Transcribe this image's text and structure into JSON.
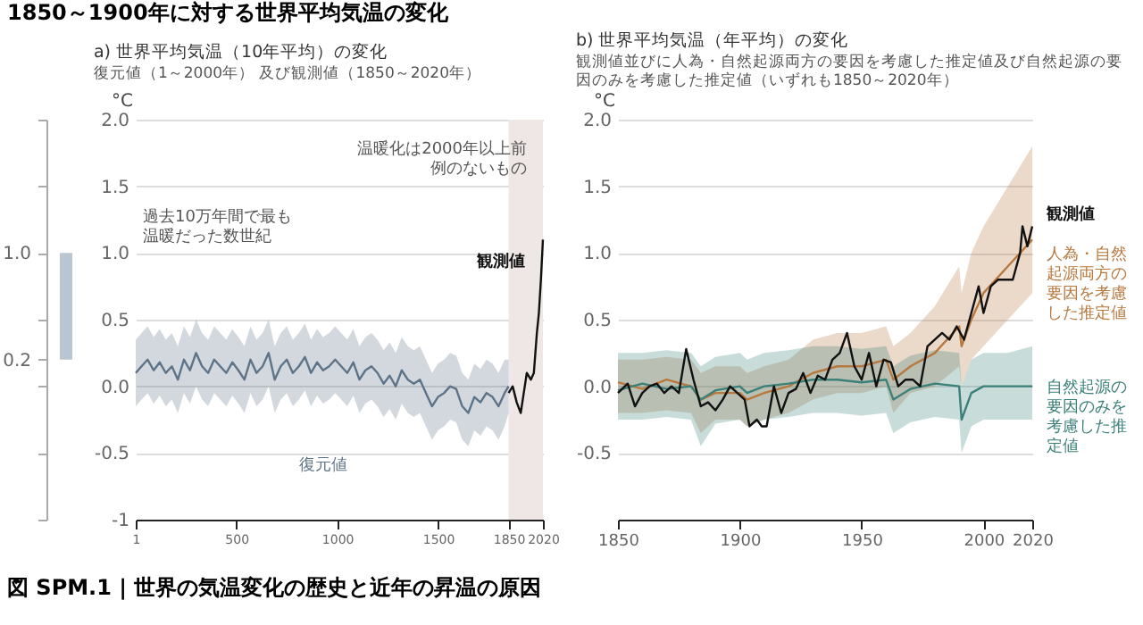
{
  "chart_data": [
    {
      "type": "bar",
      "title": "1850～1900年に対する世界平均気温の変化",
      "annotations": [
        "図 SPM.1 | 世界の気温変化の歴史と近年の昇温の原因"
      ],
      "categories": [
        null
      ],
      "base": [
        0.2
      ],
      "values": [
        0.8
      ],
      "color": "#b9c6d2",
      "ylim": [
        -1,
        2
      ],
      "yticks": [
        {
          "value": 2,
          "label": null
        },
        {
          "value": 1.5,
          "label": null
        },
        {
          "value": 1,
          "label": "1.0"
        },
        {
          "value": 0.5,
          "label": null
        },
        {
          "value": 0.2,
          "label": "0.2"
        },
        {
          "value": 0,
          "label": null
        },
        {
          "value": -0.5,
          "label": null
        },
        {
          "value": -1,
          "label": null
        }
      ]
    },
    {
      "type": "line",
      "title": "a) 世界平均気温（10年平均）の変化",
      "subtitle": "復元値（1～2000年） 及び観測値（1850～2020年）",
      "ylabel": "°C",
      "annotations": [
        "温暖化は2000年以上前例のないもの",
        "過去10万年間で最も温暖だった数世紀"
      ],
      "xlim": [
        1,
        2020
      ],
      "xticks": [
        1,
        500,
        1000,
        1500,
        1850,
        2020
      ],
      "ylim": [
        -1,
        2
      ],
      "yticks": [
        -1,
        {
          "value": -0.5,
          "label": "-0.5"
        },
        {
          "value": 0,
          "label": "0.0"
        },
        0.5,
        {
          "value": 1,
          "label": "1.0"
        },
        1.5,
        {
          "value": 2,
          "label": "2.0"
        }
      ],
      "grid": "y",
      "bands": [
        {
          "axis": "x",
          "from": 1850,
          "to": 2020,
          "color": "#efe6e6"
        }
      ],
      "series": [
        {
          "name": "復元値",
          "color": "#5e7387",
          "x": [
            1,
            30,
            60,
            90,
            120,
            150,
            180,
            210,
            240,
            270,
            300,
            330,
            360,
            390,
            420,
            450,
            480,
            510,
            540,
            570,
            600,
            630,
            660,
            690,
            720,
            750,
            780,
            810,
            840,
            870,
            900,
            930,
            960,
            990,
            1020,
            1050,
            1080,
            1110,
            1140,
            1170,
            1200,
            1230,
            1260,
            1290,
            1320,
            1350,
            1380,
            1410,
            1440,
            1470,
            1500,
            1530,
            1560,
            1590,
            1620,
            1650,
            1680,
            1710,
            1740,
            1770,
            1800,
            1830,
            1850
          ],
          "values": [
            0.1,
            0.15,
            0.2,
            0.12,
            0.18,
            0.1,
            0.15,
            0.05,
            0.2,
            0.12,
            0.25,
            0.15,
            0.1,
            0.2,
            0.15,
            0.1,
            0.18,
            0.12,
            0.05,
            0.2,
            0.1,
            0.15,
            0.25,
            0.05,
            0.15,
            0.2,
            0.1,
            0.15,
            0.22,
            0.1,
            0.18,
            0.12,
            0.15,
            0.2,
            0.15,
            0.1,
            0.18,
            0.05,
            0.12,
            0.15,
            0.1,
            0.02,
            0.08,
            0.0,
            0.12,
            0.05,
            0.02,
            0.05,
            -0.05,
            -0.15,
            -0.08,
            -0.05,
            0.0,
            -0.02,
            -0.15,
            -0.2,
            -0.08,
            -0.12,
            -0.05,
            -0.08,
            -0.15,
            -0.05,
            0.0
          ],
          "lower": [
            -0.15,
            -0.1,
            -0.05,
            -0.13,
            -0.07,
            -0.15,
            -0.1,
            -0.2,
            -0.05,
            -0.13,
            0.0,
            -0.1,
            -0.15,
            -0.05,
            -0.1,
            -0.15,
            -0.07,
            -0.13,
            -0.2,
            -0.05,
            -0.15,
            -0.1,
            0.0,
            -0.2,
            -0.1,
            -0.05,
            -0.15,
            -0.1,
            -0.03,
            -0.15,
            -0.07,
            -0.13,
            -0.1,
            -0.05,
            -0.1,
            -0.15,
            -0.07,
            -0.2,
            -0.13,
            -0.1,
            -0.15,
            -0.23,
            -0.17,
            -0.25,
            -0.13,
            -0.2,
            -0.23,
            -0.2,
            -0.3,
            -0.4,
            -0.33,
            -0.3,
            -0.25,
            -0.27,
            -0.4,
            -0.45,
            -0.33,
            -0.37,
            -0.3,
            -0.33,
            -0.4,
            -0.3,
            -0.2
          ],
          "upper": [
            0.35,
            0.4,
            0.45,
            0.37,
            0.43,
            0.35,
            0.4,
            0.3,
            0.45,
            0.37,
            0.5,
            0.4,
            0.35,
            0.45,
            0.4,
            0.35,
            0.43,
            0.37,
            0.3,
            0.45,
            0.35,
            0.4,
            0.5,
            0.3,
            0.4,
            0.45,
            0.35,
            0.4,
            0.47,
            0.35,
            0.43,
            0.37,
            0.4,
            0.45,
            0.4,
            0.35,
            0.43,
            0.3,
            0.37,
            0.4,
            0.35,
            0.27,
            0.33,
            0.25,
            0.37,
            0.3,
            0.27,
            0.3,
            0.2,
            0.1,
            0.17,
            0.2,
            0.25,
            0.23,
            0.1,
            0.05,
            0.17,
            0.13,
            0.2,
            0.17,
            0.1,
            0.2,
            0.2
          ]
        },
        {
          "name": "観測値",
          "color": "#111111",
          "x": [
            1850,
            1870,
            1890,
            1910,
            1920,
            1940,
            1960,
            1975,
            1990,
            2000,
            2010,
            2020
          ],
          "values": [
            -0.05,
            0.0,
            -0.12,
            -0.2,
            -0.1,
            0.1,
            0.05,
            0.1,
            0.4,
            0.55,
            0.8,
            1.1
          ]
        }
      ]
    },
    {
      "type": "line",
      "title": "b) 世界平均気温（年平均）の変化",
      "subtitle": "観測値並びに人為・自然起源両方の要因を考慮した推定値及び自然起源の要因のみを考慮した推定値（いずれも1850～2020年）",
      "ylabel": "°C",
      "xlim": [
        1850,
        2020
      ],
      "xticks": [
        1850,
        1900,
        1950,
        2000,
        2020
      ],
      "ylim": [
        -1,
        2
      ],
      "yticks": [
        {
          "value": -0.5,
          "label": "-0.5"
        },
        {
          "value": 0,
          "label": "0.0"
        },
        0.5,
        {
          "value": 1,
          "label": "1.0"
        },
        1.5,
        {
          "value": 2,
          "label": "2.0"
        }
      ],
      "grid": "y",
      "series": [
        {
          "name": "人為・自然起源両方の要因を考慮した推定値",
          "color": "#b8783e",
          "x": [
            1850,
            1860,
            1870,
            1880,
            1884,
            1890,
            1900,
            1903,
            1910,
            1920,
            1930,
            1940,
            1950,
            1960,
            1963,
            1970,
            1980,
            1990,
            1991,
            1995,
            2000,
            2010,
            2020
          ],
          "values": [
            0.03,
            -0.02,
            0.05,
            0.0,
            -0.1,
            -0.05,
            -0.05,
            -0.1,
            -0.05,
            0.0,
            0.1,
            0.15,
            0.15,
            0.2,
            0.05,
            0.15,
            0.25,
            0.45,
            0.3,
            0.5,
            0.7,
            0.9,
            1.1
          ],
          "lower": [
            -0.2,
            -0.2,
            -0.18,
            -0.2,
            -0.35,
            -0.25,
            -0.25,
            -0.3,
            -0.25,
            -0.2,
            -0.1,
            -0.05,
            -0.05,
            0.0,
            -0.2,
            -0.05,
            0.0,
            0.15,
            0.0,
            0.2,
            0.3,
            0.5,
            0.7
          ],
          "upper": [
            0.2,
            0.2,
            0.22,
            0.2,
            0.1,
            0.15,
            0.15,
            0.1,
            0.15,
            0.2,
            0.35,
            0.4,
            0.4,
            0.45,
            0.3,
            0.4,
            0.6,
            0.9,
            0.7,
            1.0,
            1.2,
            1.5,
            1.8
          ]
        },
        {
          "name": "自然起源の要因のみを考慮した推定値",
          "color": "#3b8079",
          "x": [
            1850,
            1860,
            1870,
            1880,
            1884,
            1890,
            1900,
            1903,
            1910,
            1920,
            1930,
            1940,
            1950,
            1960,
            1963,
            1970,
            1980,
            1990,
            1991,
            1995,
            2000,
            2010,
            2020
          ],
          "values": [
            -0.03,
            0.02,
            -0.02,
            0.0,
            -0.1,
            -0.03,
            0.0,
            -0.05,
            0.0,
            0.02,
            0.05,
            0.05,
            0.03,
            0.05,
            -0.1,
            -0.02,
            0.02,
            0.0,
            -0.25,
            -0.05,
            0.0,
            0.0,
            0.0
          ],
          "lower": [
            -0.25,
            -0.25,
            -0.23,
            -0.25,
            -0.45,
            -0.28,
            -0.25,
            -0.3,
            -0.25,
            -0.23,
            -0.2,
            -0.2,
            -0.22,
            -0.2,
            -0.35,
            -0.27,
            -0.23,
            -0.25,
            -0.5,
            -0.3,
            -0.25,
            -0.25,
            -0.25
          ],
          "upper": [
            0.25,
            0.25,
            0.27,
            0.25,
            0.15,
            0.22,
            0.25,
            0.2,
            0.25,
            0.27,
            0.3,
            0.3,
            0.28,
            0.3,
            0.15,
            0.23,
            0.27,
            0.25,
            0.0,
            0.2,
            0.25,
            0.25,
            0.3
          ]
        },
        {
          "name": "観測値",
          "color": "#111111",
          "x": [
            1850,
            1854,
            1857,
            1860,
            1863,
            1866,
            1869,
            1872,
            1875,
            1878,
            1881,
            1884,
            1887,
            1890,
            1893,
            1896,
            1899,
            1902,
            1904,
            1907,
            1909,
            1911,
            1914,
            1917,
            1920,
            1923,
            1926,
            1929,
            1932,
            1935,
            1938,
            1941,
            1944,
            1947,
            1950,
            1953,
            1956,
            1959,
            1962,
            1965,
            1968,
            1971,
            1974,
            1977,
            1980,
            1983,
            1986,
            1989,
            1992,
            1995,
            1998,
            2000,
            2003,
            2006,
            2009,
            2012,
            2015,
            2016,
            2018,
            2020
          ],
          "values": [
            -0.05,
            0.02,
            -0.15,
            -0.05,
            0.0,
            0.02,
            -0.05,
            0.0,
            -0.05,
            0.28,
            0.05,
            -0.15,
            -0.12,
            -0.18,
            -0.1,
            0.0,
            -0.05,
            -0.1,
            -0.3,
            -0.25,
            -0.3,
            -0.3,
            0.0,
            -0.2,
            -0.05,
            -0.02,
            0.1,
            -0.05,
            0.08,
            0.05,
            0.2,
            0.25,
            0.4,
            0.15,
            0.05,
            0.25,
            0.0,
            0.2,
            0.18,
            0.0,
            0.05,
            0.05,
            0.0,
            0.3,
            0.35,
            0.4,
            0.35,
            0.45,
            0.35,
            0.55,
            0.75,
            0.55,
            0.75,
            0.8,
            0.8,
            0.8,
            1.0,
            1.2,
            1.05,
            1.2
          ]
        }
      ]
    }
  ]
}
